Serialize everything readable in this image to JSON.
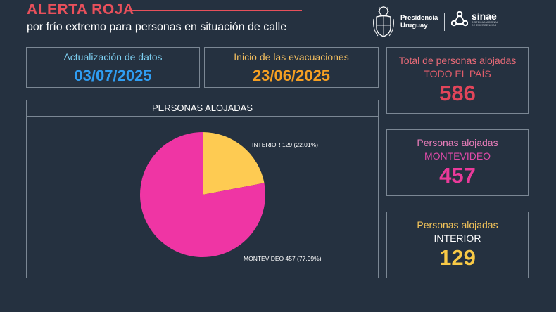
{
  "header": {
    "title": "ALERTA ROJA",
    "subtitle": "por frío extremo para personas en situación de calle",
    "logos": {
      "presidencia_line1": "Presidencia",
      "presidencia_line2": "Uruguay",
      "sinae_name": "sinae",
      "sinae_small_line1": "SISTEMA NACIONAL",
      "sinae_small_line2": "DE EMERGENCIAS",
      "presidencia_icon": "coat-of-arms-icon",
      "sinae_icon": "sinae-triangle-icon"
    }
  },
  "update_box": {
    "label": "Actualización de datos",
    "value": "03/07/2025"
  },
  "evac_box": {
    "label": "Inicio de las evacuaciones",
    "value": "23/06/2025"
  },
  "stats": {
    "total": {
      "label": "Total de personas alojadas",
      "sublabel": "TODO EL PAÍS",
      "value": "586"
    },
    "montevideo": {
      "label": "Personas alojadas",
      "sublabel": "MONTEVIDEO",
      "value": "457"
    },
    "interior": {
      "label": "Personas alojadas",
      "sublabel": "INTERIOR",
      "value": "129"
    }
  },
  "chart_data": {
    "type": "pie",
    "title": "PERSONAS ALOJADAS",
    "slices": [
      {
        "label": "INTERIOR",
        "value": 129,
        "percent": "22.01%",
        "color": "#fecb52"
      },
      {
        "label": "MONTEVIDEO",
        "value": 457,
        "percent": "77.99%",
        "color": "#ef35a4"
      }
    ],
    "slice_labels": [
      "INTERIOR 129 (22.01%)",
      "MONTEVIDEO 457 (77.99%)"
    ],
    "start": "top",
    "direction": "clockwise",
    "legend": "none"
  },
  "colors": {
    "background": "#253140",
    "alert_red": "#e8505b",
    "border": "#7b8794"
  }
}
